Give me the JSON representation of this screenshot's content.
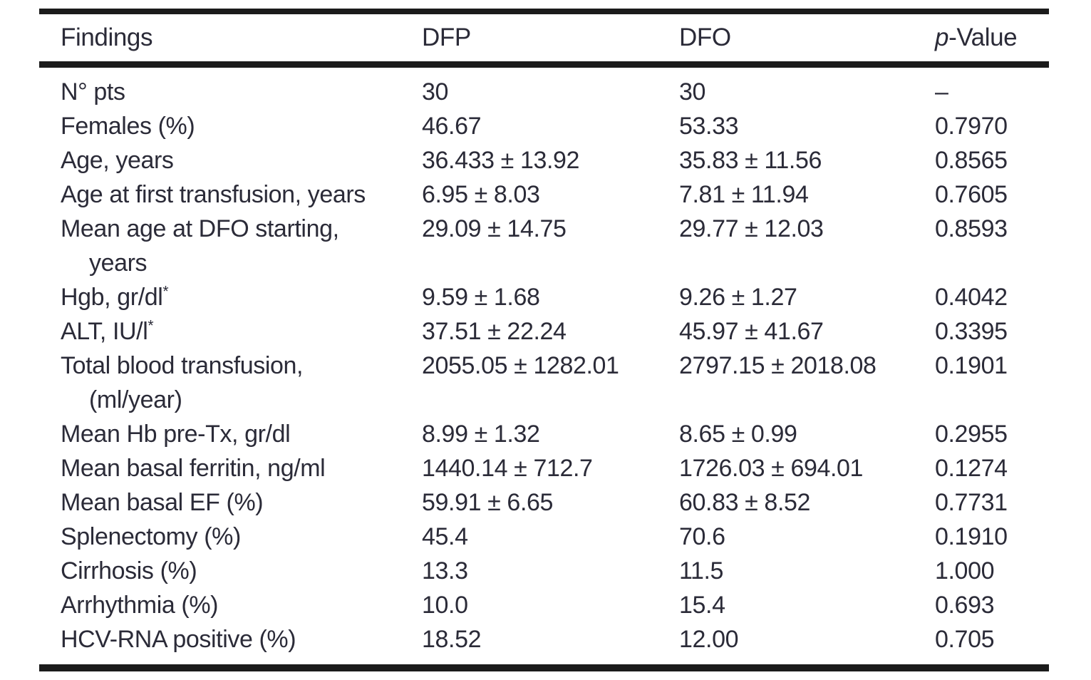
{
  "colors": {
    "background": "#ffffff",
    "text": "#2b2b38",
    "rule": "#1b1b1b"
  },
  "table": {
    "columns": [
      "Findings",
      "DFP",
      "DFO",
      "p-Value"
    ],
    "p_header": {
      "italic": "p",
      "rest": "-Value"
    },
    "rows": [
      {
        "label": "N° pts",
        "dfp": "30",
        "dfo": "30",
        "p": "–"
      },
      {
        "label": "Females (%)",
        "dfp": "46.67",
        "dfo": "53.33",
        "p": "0.7970"
      },
      {
        "label": "Age, years",
        "dfp": "36.433 ± 13.92",
        "dfo": "35.83 ± 11.56",
        "p": "0.8565"
      },
      {
        "label": "Age at first transfusion, years",
        "dfp": "6.95 ± 8.03",
        "dfo": "7.81 ± 11.94",
        "p": "0.7605"
      },
      {
        "label": "Mean age at DFO starting,",
        "label2": "years",
        "dfp": "29.09 ± 14.75",
        "dfo": "29.77 ± 12.03",
        "p": "0.8593"
      },
      {
        "label": "Hgb, gr/dl",
        "label_sup": "*",
        "dfp": "9.59 ± 1.68",
        "dfo": "9.26 ± 1.27",
        "p": "0.4042"
      },
      {
        "label": "ALT, IU/l",
        "label_sup": "*",
        "dfp": "37.51 ± 22.24",
        "dfo": "45.97 ± 41.67",
        "p": "0.3395"
      },
      {
        "label": "Total blood transfusion,",
        "label2": "(ml/year)",
        "dfp": "2055.05 ± 1282.01",
        "dfo": "2797.15 ± 2018.08",
        "p": "0.1901"
      },
      {
        "label": "Mean Hb pre-Tx, gr/dl",
        "dfp": "8.99 ± 1.32",
        "dfo": "8.65 ± 0.99",
        "p": "0.2955"
      },
      {
        "label": "Mean basal ferritin, ng/ml",
        "dfp": "1440.14 ± 712.7",
        "dfo": "1726.03 ± 694.01",
        "p": "0.1274"
      },
      {
        "label": "Mean basal EF (%)",
        "dfp": "59.91 ± 6.65",
        "dfo": "60.83 ± 8.52",
        "p": "0.7731"
      },
      {
        "label": "Splenectomy (%)",
        "dfp": "45.4",
        "dfo": "70.6",
        "p": "0.1910"
      },
      {
        "label": "Cirrhosis (%)",
        "dfp": "13.3",
        "dfo": "11.5",
        "p": "1.000"
      },
      {
        "label": "Arrhythmia (%)",
        "dfp": "10.0",
        "dfo": "15.4",
        "p": "0.693"
      },
      {
        "label": "HCV-RNA positive (%)",
        "dfp": "18.52",
        "dfo": "12.00",
        "p": "0.705"
      }
    ]
  }
}
